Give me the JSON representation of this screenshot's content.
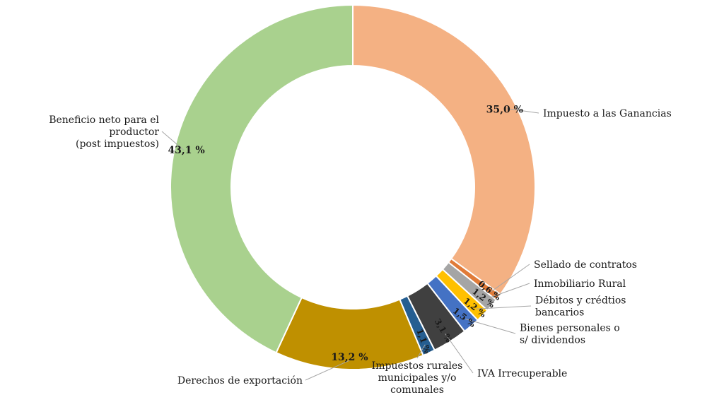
{
  "chart_data": {
    "type": "pie",
    "variant": "donut",
    "title": "",
    "legend": "none",
    "slices": [
      {
        "label": "Impuesto a las Ganancias",
        "value": 35.0,
        "value_label": "35,0 %",
        "color": "#f4b183"
      },
      {
        "label": "Sellado de contratos",
        "value": 0.6,
        "value_label": "0,6 %",
        "color": "#e07b39"
      },
      {
        "label": "Inmobiliario Rural",
        "value": 1.2,
        "value_label": "1,2 %",
        "color": "#a5a5a5"
      },
      {
        "label": "Débitos y crédtios bancarios",
        "value": 1.2,
        "value_label": "1,2 %",
        "color": "#ffc000"
      },
      {
        "label": "Bienes personales o s/ dividendos",
        "value": 1.5,
        "value_label": "1,5 %",
        "color": "#4472c4"
      },
      {
        "label": "IVA Irrecuperable",
        "value": 3.1,
        "value_label": "3,1 %",
        "color": "#404040"
      },
      {
        "label": "Impuestos rurales municipales y/o comunales",
        "value": 1.1,
        "value_label": "1,1 %",
        "color": "#255e91"
      },
      {
        "label": "Derechos de exportación",
        "value": 13.2,
        "value_label": "13,2 %",
        "color": "#bf9000"
      },
      {
        "label": "Beneficio neto para el productor (post impuestos)",
        "value": 43.1,
        "value_label": "43,1 %",
        "color": "#a9d18e"
      }
    ]
  }
}
